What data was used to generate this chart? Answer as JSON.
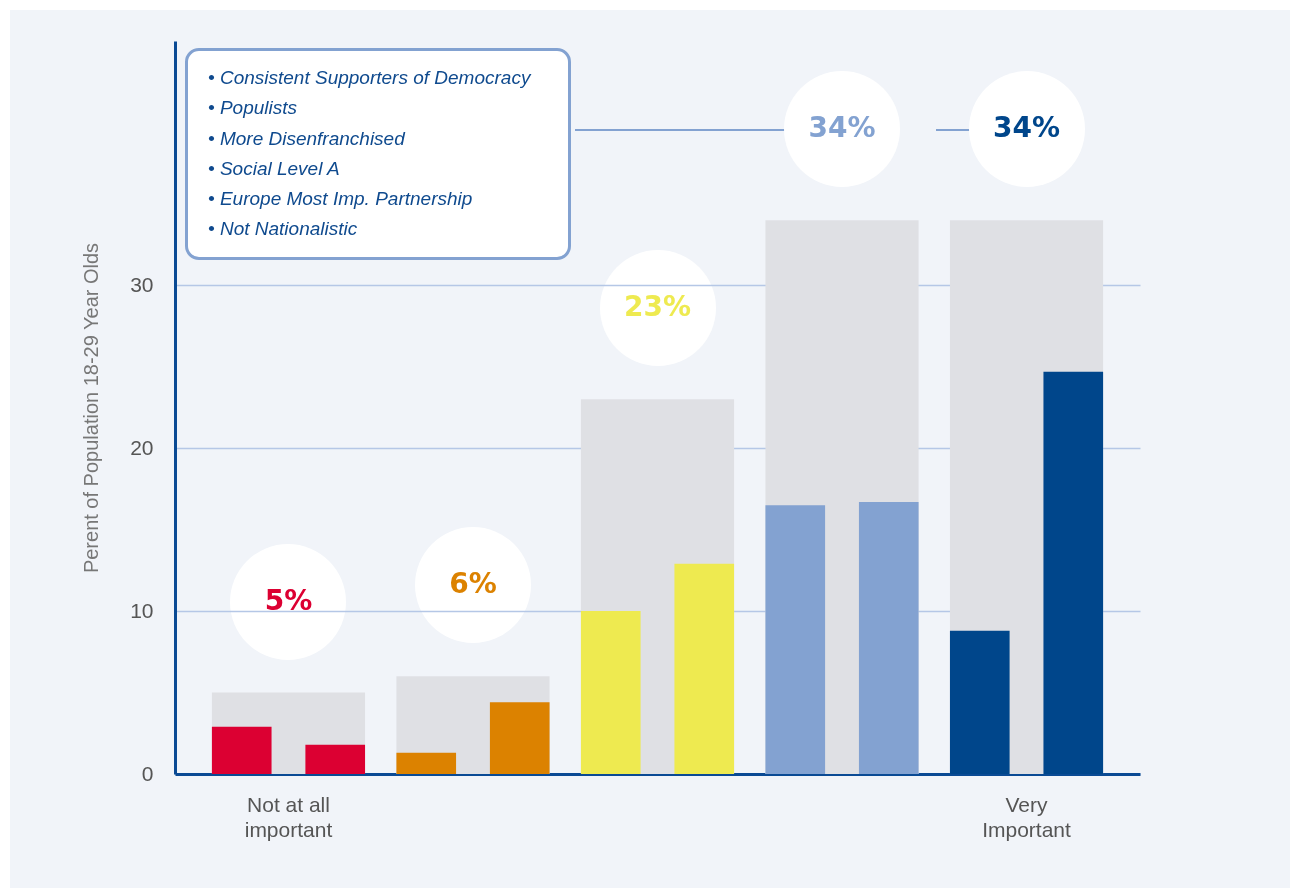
{
  "chart_data": {
    "type": "bar",
    "ylabel": "Perent of Population 18-29 Year Olds",
    "categories": [
      "Not at all important",
      null,
      null,
      null,
      "Very Important"
    ],
    "series": [
      {
        "color": "#dfe0e4",
        "values": [
          5,
          6,
          23,
          34,
          34
        ],
        "value_labels": [
          "5%",
          "6%",
          "23%",
          "34%",
          "34%"
        ]
      },
      {
        "colors": [
          "#dc0032",
          "#dc8200",
          "#eeea50",
          "#83a2d1",
          "#00468b"
        ],
        "values": [
          2.9,
          1.3,
          10,
          16.5,
          8.8
        ]
      },
      {
        "colors": [
          "#dc0032",
          "#dc8200",
          "#eeea50",
          "#83a2d1",
          "#00468b"
        ],
        "values": [
          1.8,
          4.4,
          12.9,
          16.7,
          24.7
        ]
      }
    ],
    "ylim": [
      0,
      45
    ],
    "yticks": [
      0,
      10,
      20,
      30
    ],
    "grid": "y",
    "annotations": [
      "• Consistent Supporters of Democracy",
      "• Populists",
      "• More Disenfranchised",
      "• Social Level A",
      "• Europe Most Imp. Partnership",
      "• Not Nationalistic"
    ]
  }
}
